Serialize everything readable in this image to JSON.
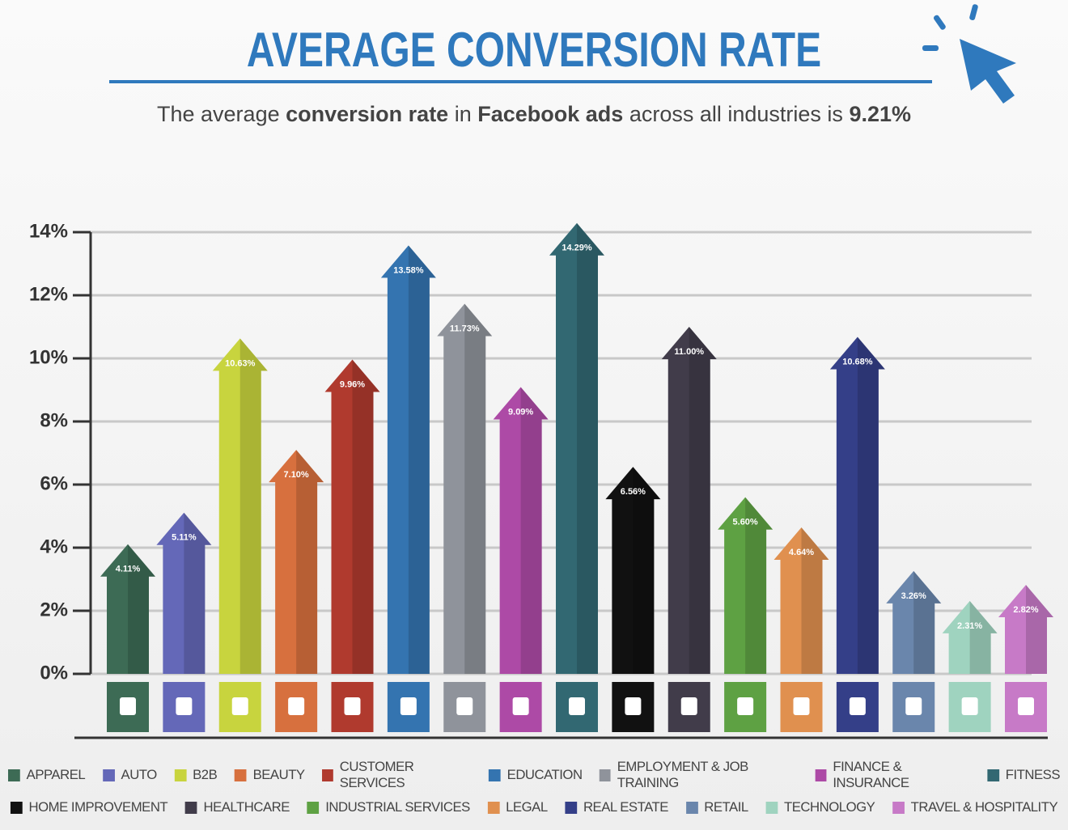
{
  "chart_data": {
    "type": "arrow-bar",
    "title": "AVERAGE CONVERSION RATE",
    "subtitle_parts": [
      {
        "text": "The average",
        "bold": false
      },
      {
        "text": "conversion rate",
        "bold": true
      },
      {
        "text": "in",
        "bold": false
      },
      {
        "text": "Facebook ads",
        "bold": true
      },
      {
        "text": "across all industries is",
        "bold": false
      },
      {
        "text": "9.21%",
        "bold": true
      }
    ],
    "categories": [
      "APPAREL",
      "AUTO",
      "B2B",
      "BEAUTY",
      "CUSTOMER SERVICES",
      "EDUCATION",
      "EMPLOYMENT & JOB TRAINING",
      "FINANCE & INSURANCE",
      "FITNESS",
      "HOME IMPROVEMENT",
      "HEALTHCARE",
      "INDUSTRIAL SERVICES",
      "LEGAL",
      "REAL ESTATE",
      "RETAIL",
      "TECHNOLOGY",
      "TRAVEL & HOSPITALITY"
    ],
    "values": [
      4.11,
      5.11,
      10.63,
      7.1,
      9.96,
      13.58,
      11.73,
      9.09,
      14.29,
      6.56,
      11.0,
      5.6,
      4.64,
      10.68,
      3.26,
      2.31,
      2.82
    ],
    "value_labels": [
      "4.11%",
      "5.11%",
      "10.63%",
      "7.10%",
      "9.96%",
      "13.58%",
      "11.73%",
      "9.09%",
      "14.29%",
      "6.56%",
      "11.00%",
      "5.60%",
      "4.64%",
      "10.68%",
      "3.26%",
      "2.31%",
      "2.82%"
    ],
    "colors": [
      "#3d6b55",
      "#6468b8",
      "#c8d43e",
      "#d7703e",
      "#b03a2e",
      "#3474b0",
      "#8f939b",
      "#ad4aa6",
      "#326872",
      "#111111",
      "#413c4a",
      "#5ea143",
      "#e0904f",
      "#343f88",
      "#6a86ac",
      "#9fd3bf",
      "#c77ac7"
    ],
    "ylim": [
      0,
      14
    ],
    "yticks": [
      {
        "value": 0,
        "label": "0%"
      },
      {
        "value": 2,
        "label": "2%"
      },
      {
        "value": 4,
        "label": "4%"
      },
      {
        "value": 6,
        "label": "6%"
      },
      {
        "value": 8,
        "label": "8%"
      },
      {
        "value": 10,
        "label": "10%"
      },
      {
        "value": 12,
        "label": "12%"
      },
      {
        "value": 14,
        "label": "14%"
      }
    ],
    "grid": true
  }
}
